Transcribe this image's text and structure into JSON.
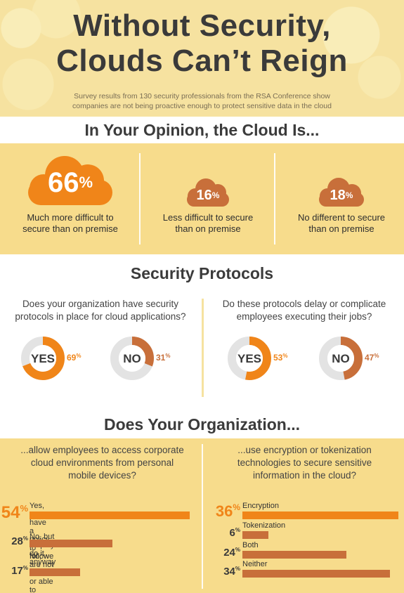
{
  "header": {
    "title_line1": "Without Security,",
    "title_line2": "Clouds Can’t Reign",
    "subtitle_line1": "Survey results from 130 security professionals from the RSA Conference show",
    "subtitle_line2": "companies are not being proactive enough to protect sensitive data in the cloud"
  },
  "opinion": {
    "heading": "In Your Opinion, the Cloud Is...",
    "items": [
      {
        "pct": "66",
        "sign": "%",
        "label_line1": "Much more difficult to",
        "label_line2": "secure than on premise"
      },
      {
        "pct": "16",
        "sign": "%",
        "label_line1": "Less difficult to secure",
        "label_line2": "than on premise"
      },
      {
        "pct": "18",
        "sign": "%",
        "label_line1": "No different to secure",
        "label_line2": "than on premise"
      }
    ]
  },
  "protocols": {
    "heading": "Security Protocols",
    "q1_line1": "Does your organization have security",
    "q1_line2": "protocols in place for cloud applications?",
    "q2_line1": "Do these protocols delay or complicate",
    "q2_line2": "employees executing their jobs?",
    "donuts": [
      {
        "label": "YES",
        "pct_num": "69",
        "pct_sign": "%",
        "value": 69
      },
      {
        "label": "NO",
        "pct_num": "31",
        "pct_sign": "%",
        "value": 31
      },
      {
        "label": "YES",
        "pct_num": "53",
        "pct_sign": "%",
        "value": 53
      },
      {
        "label": "NO",
        "pct_num": "47",
        "pct_sign": "%",
        "value": 47
      }
    ]
  },
  "organization": {
    "heading": "Does Your Organization...",
    "q1_line1": "...allow employees to access corporate",
    "q1_line2": "cloud environments from personal",
    "q1_line3": "mobile devices?",
    "q2_line1": "...use encryption or tokenization",
    "q2_line2": "technologies to secure sensitive",
    "q2_line3": "information in the cloud?",
    "left_bars": [
      {
        "pct_num": "54",
        "pct_sign": "%",
        "label_line1": "Yes, we have a policy to follow",
        "label_line2": "",
        "value": 54
      },
      {
        "pct_num": "28",
        "pct_sign": "%",
        "label_line1": "No, but employees do it anyway",
        "label_line2": "",
        "value": 28
      },
      {
        "pct_num": "17",
        "pct_sign": "%",
        "label_line1": "No, we are not allowed",
        "label_line2": "or able to access",
        "value": 17
      }
    ],
    "right_bars": [
      {
        "pct_num": "36",
        "pct_sign": "%",
        "label_line1": "Encryption",
        "value": 36
      },
      {
        "pct_num": "6",
        "pct_sign": "%",
        "label_line1": "Tokenization",
        "value": 6
      },
      {
        "pct_num": "24",
        "pct_sign": "%",
        "label_line1": "Both",
        "value": 24
      },
      {
        "pct_num": "34",
        "pct_sign": "%",
        "label_line1": "Neither",
        "value": 34
      }
    ]
  },
  "colors": {
    "orange": "#f08519",
    "rust": "#c86f3a",
    "gray_ring": "#e3e3e3",
    "background": "#f6e2a0"
  },
  "chart_data": [
    {
      "type": "bar",
      "title": "In Your Opinion, the Cloud Is...",
      "categories": [
        "Much more difficult to secure than on premise",
        "Less difficult to secure than on premise",
        "No different to secure than on premise"
      ],
      "values": [
        66,
        16,
        18
      ]
    },
    {
      "type": "pie",
      "title": "Does your organization have security protocols in place for cloud applications?",
      "categories": [
        "YES",
        "NO"
      ],
      "values": [
        69,
        31
      ]
    },
    {
      "type": "pie",
      "title": "Do these protocols delay or complicate employees executing their jobs?",
      "categories": [
        "YES",
        "NO"
      ],
      "values": [
        53,
        47
      ]
    },
    {
      "type": "bar",
      "title": "...allow employees to access corporate cloud environments from personal mobile devices?",
      "categories": [
        "Yes, we have a policy to follow",
        "No, but employees do it anyway",
        "No, we are not allowed or able to access"
      ],
      "values": [
        54,
        28,
        17
      ]
    },
    {
      "type": "bar",
      "title": "...use encryption or tokenization technologies to secure sensitive information in the cloud?",
      "categories": [
        "Encryption",
        "Tokenization",
        "Both",
        "Neither"
      ],
      "values": [
        36,
        6,
        24,
        34
      ]
    }
  ]
}
